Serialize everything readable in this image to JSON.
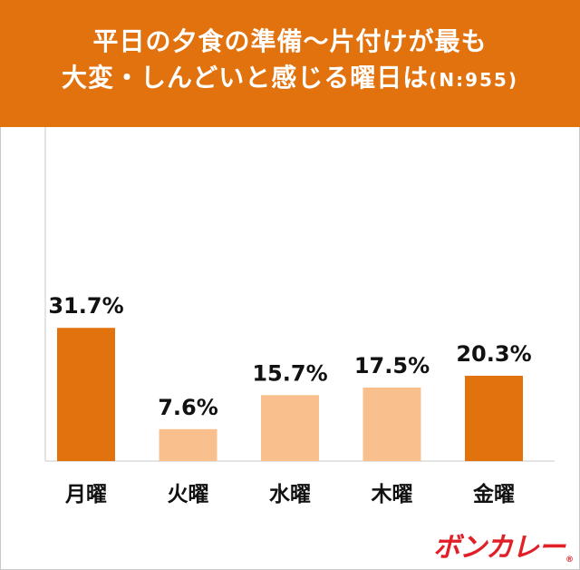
{
  "header": {
    "title_line1": "平日の夕食の準備〜片付けが最も",
    "title_line2": "大変・しんどいと感じる曜日は",
    "sample_note": "(N:955)"
  },
  "brand": {
    "logo_text": "ボンカレー",
    "registered_mark": "®"
  },
  "colors": {
    "header_bg": "#e2720e",
    "highlight_bar": "#e2720e",
    "normal_bar": "#f9c08e",
    "logo": "#e01f26"
  },
  "chart_data": {
    "type": "bar",
    "categories": [
      "月曜",
      "火曜",
      "水曜",
      "木曜",
      "金曜"
    ],
    "values": [
      31.7,
      7.6,
      15.7,
      17.5,
      20.3
    ],
    "value_labels": [
      "31.7%",
      "7.6%",
      "15.7%",
      "17.5%",
      "20.3%"
    ],
    "highlighted": [
      true,
      false,
      false,
      false,
      true
    ],
    "unit": "%",
    "ylim": [
      0,
      35
    ],
    "grid": false,
    "legend": "none"
  }
}
